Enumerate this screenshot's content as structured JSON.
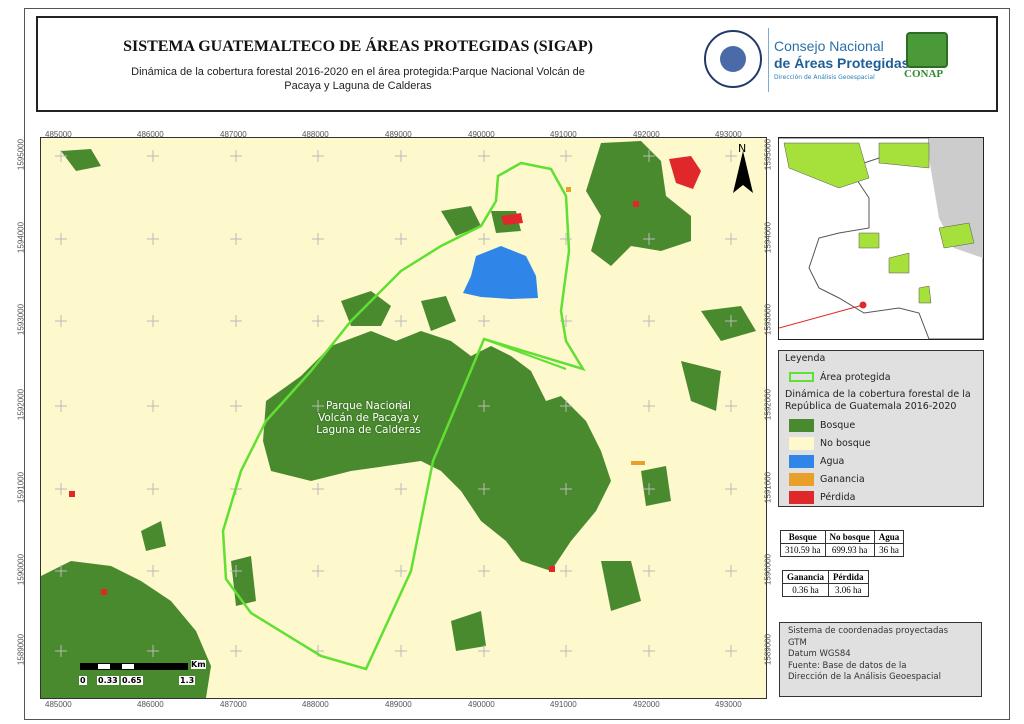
{
  "header": {
    "title": "SISTEMA GUATEMALTECO DE ÁREAS PROTEGIDAS  (SIGAP)",
    "subtitle": "Dinámica de la cobertura forestal 2016-2020 en el área protegida:Parque Nacional Volcán de Pacaya y  Laguna de Calderas",
    "logos": {
      "seal": "GOBIERNO DE LA REPÚBLICA GUATEMALA",
      "conap_line1": "Consejo Nacional",
      "conap_line2": "de Áreas Protegidas",
      "conap_line3": "Dirección de Análisis Geoespacial",
      "conap_short": "CONAP"
    }
  },
  "map": {
    "x_ticks": [
      "485000",
      "486000",
      "487000",
      "488000",
      "489000",
      "490000",
      "491000",
      "492000",
      "493000"
    ],
    "y_ticks": [
      "1595000",
      "1594000",
      "1593000",
      "1592000",
      "1591000",
      "1590000",
      "1589000"
    ],
    "area_label": "Parque Nacional Volcán de Pacaya y Laguna de Calderas",
    "north_label": "N",
    "scale": {
      "unit": "Km",
      "labels": [
        "0",
        "0.33",
        "0.65",
        "1.3"
      ]
    }
  },
  "legend": {
    "title": "Leyenda",
    "area": "Área protegida",
    "subtitle": "Dinámica de la cobertura forestal de la República de Guatemala 2016-2020",
    "items": [
      {
        "label": "Bosque",
        "color": "#4a8a2e"
      },
      {
        "label": "No bosque",
        "color": "#fdf9cd"
      },
      {
        "label": "Agua",
        "color": "#2f86e8"
      },
      {
        "label": "Ganancia",
        "color": "#e8a02a"
      },
      {
        "label": "Pérdida",
        "color": "#e0282a"
      }
    ]
  },
  "table1": {
    "headers": [
      "Bosque",
      "No bosque",
      "Agua"
    ],
    "values": [
      "310.59 ha",
      "699.93 ha",
      "36 ha"
    ]
  },
  "table2": {
    "headers": [
      "Ganancia",
      "Pérdida"
    ],
    "values": [
      "0.36 ha",
      "3.06 ha"
    ]
  },
  "info": [
    "Sistema de coordenadas proyectadas",
    "GTM",
    "Datum WGS84",
    "Fuente: Base de datos de la",
    "Dirección de la Análisis Geoespacial"
  ]
}
